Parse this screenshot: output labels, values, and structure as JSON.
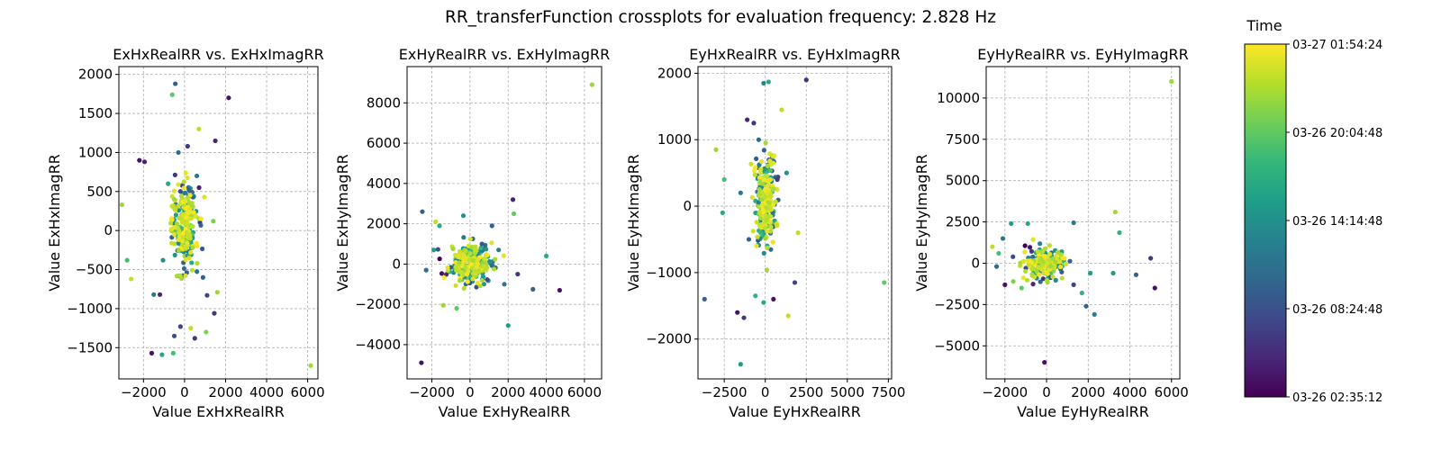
{
  "figure": {
    "title": "RR_transferFunction crossplots for evaluation frequency: 2.828 Hz"
  },
  "colorbar": {
    "title": "Time",
    "colormap": "viridis",
    "colors": [
      "#440154",
      "#482878",
      "#3e4989",
      "#31688e",
      "#26828e",
      "#1f9e89",
      "#35b779",
      "#6ece58",
      "#b5de2b",
      "#fde725"
    ],
    "tick_labels": [
      "03-27 01:54:24",
      "03-26 20:04:48",
      "03-26 14:14:48",
      "03-26 08:24:48",
      "03-26 02:35:12"
    ]
  },
  "chart_data": [
    {
      "type": "scatter",
      "title": "ExHxRealRR vs. ExHxImagRR",
      "xlabel": "Value ExHxRealRR",
      "ylabel": "Value ExHxImagRR",
      "xlim": [
        -3200,
        6500
      ],
      "ylim": [
        -1900,
        2100
      ],
      "xticks": [
        -2000,
        0,
        2000,
        4000,
        6000
      ],
      "yticks": [
        -1500,
        -1000,
        -500,
        0,
        500,
        1000,
        1500,
        2000
      ],
      "grid": true,
      "core": {
        "x_center": 0,
        "y_center": 50,
        "x_spread": 300,
        "y_spread": 260,
        "count": 240
      },
      "points": [
        [
          -450,
          1880,
          0.3
        ],
        [
          -600,
          1740,
          0.75
        ],
        [
          2150,
          1700,
          0.05
        ],
        [
          -2200,
          900,
          0.05
        ],
        [
          -1950,
          880,
          0.1
        ],
        [
          1500,
          1150,
          0.1
        ],
        [
          700,
          1300,
          0.9
        ],
        [
          -300,
          1000,
          0.35
        ],
        [
          150,
          1080,
          0.15
        ],
        [
          -3050,
          330,
          0.85
        ],
        [
          -2800,
          -380,
          0.7
        ],
        [
          -2600,
          -620,
          0.9
        ],
        [
          -1200,
          -820,
          0.1
        ],
        [
          -1500,
          -820,
          0.4
        ],
        [
          1100,
          -830,
          0.2
        ],
        [
          1600,
          -790,
          0.85
        ],
        [
          -1600,
          -1570,
          0.05
        ],
        [
          -1100,
          -1590,
          0.6
        ],
        [
          -550,
          -1570,
          0.7
        ],
        [
          -200,
          -1230,
          0.2
        ],
        [
          -500,
          -1350,
          0.25
        ],
        [
          300,
          -1250,
          0.9
        ],
        [
          500,
          -1380,
          0.15
        ],
        [
          1050,
          -1300,
          0.8
        ],
        [
          1450,
          -1060,
          0.15
        ],
        [
          6150,
          -1730,
          0.85
        ],
        [
          1400,
          120,
          0.8
        ],
        [
          -1050,
          -380,
          0.5
        ],
        [
          900,
          -600,
          0.3
        ],
        [
          -800,
          600,
          0.6
        ],
        [
          600,
          700,
          0.4
        ]
      ]
    },
    {
      "type": "scatter",
      "title": "ExHyRealRR vs. ExHyImagRR",
      "xlabel": "Value ExHyRealRR",
      "ylabel": "Value ExHyImagRR",
      "xlim": [
        -3300,
        6900
      ],
      "ylim": [
        -5700,
        9800
      ],
      "xticks": [
        -2000,
        0,
        2000,
        4000,
        6000
      ],
      "yticks": [
        -4000,
        -2000,
        0,
        2000,
        4000,
        6000,
        8000
      ],
      "grid": true,
      "core": {
        "x_center": 0,
        "y_center": 0,
        "x_spread": 560,
        "y_spread": 520,
        "count": 240
      },
      "points": [
        [
          6400,
          8900,
          0.85
        ],
        [
          -2500,
          2600,
          0.3
        ],
        [
          2250,
          3200,
          0.1
        ],
        [
          2300,
          2500,
          0.75
        ],
        [
          -1600,
          1900,
          0.6
        ],
        [
          -1800,
          2100,
          0.9
        ],
        [
          -350,
          2400,
          0.5
        ],
        [
          1150,
          1900,
          0.3
        ],
        [
          -2550,
          -4900,
          0.05
        ],
        [
          2000,
          -3050,
          0.55
        ],
        [
          4000,
          400,
          0.6
        ],
        [
          4700,
          -1300,
          0.05
        ],
        [
          3300,
          -1250,
          0.3
        ],
        [
          -2300,
          -300,
          0.35
        ],
        [
          -1400,
          -2050,
          0.85
        ],
        [
          -700,
          -2200,
          0.75
        ],
        [
          1800,
          -1000,
          0.4
        ],
        [
          2500,
          -500,
          0.15
        ],
        [
          -1900,
          700,
          0.55
        ],
        [
          1500,
          700,
          0.45
        ]
      ]
    },
    {
      "type": "scatter",
      "title": "EyHxRealRR vs. EyHxImagRR",
      "xlabel": "Value EyHxRealRR",
      "ylabel": "Value EyHxImagRR",
      "xlim": [
        -4100,
        7700
      ],
      "ylim": [
        -2600,
        2100
      ],
      "xticks": [
        -2500,
        0,
        2500,
        5000,
        7500
      ],
      "yticks": [
        -2000,
        -1000,
        0,
        1000,
        2000
      ],
      "grid": true,
      "core": {
        "x_center": 0,
        "y_center": 60,
        "x_spread": 330,
        "y_spread": 340,
        "count": 260
      },
      "points": [
        [
          2500,
          1900,
          0.15
        ],
        [
          -100,
          1850,
          0.45
        ],
        [
          200,
          1870,
          0.6
        ],
        [
          -1100,
          1300,
          0.1
        ],
        [
          -700,
          1250,
          0.15
        ],
        [
          1000,
          1450,
          0.9
        ],
        [
          -3000,
          850,
          0.85
        ],
        [
          -2500,
          400,
          0.7
        ],
        [
          -3700,
          -1400,
          0.3
        ],
        [
          -1700,
          -1600,
          0.05
        ],
        [
          -1300,
          -1680,
          0.15
        ],
        [
          1400,
          -1650,
          0.9
        ],
        [
          -1500,
          -2380,
          0.55
        ],
        [
          -600,
          -1350,
          0.65
        ],
        [
          -100,
          -1450,
          0.6
        ],
        [
          500,
          -1400,
          0.05
        ],
        [
          1800,
          -1150,
          0.2
        ],
        [
          7250,
          -1150,
          0.75
        ],
        [
          -2600,
          -100,
          0.6
        ],
        [
          2000,
          -400,
          0.9
        ],
        [
          -1000,
          -500,
          0.3
        ],
        [
          1300,
          500,
          0.5
        ],
        [
          -1500,
          200,
          0.4
        ],
        [
          -400,
          1000,
          0.35
        ]
      ]
    },
    {
      "type": "scatter",
      "title": "EyHyRealRR vs. EyHyImagRR",
      "xlabel": "Value EyHyRealRR",
      "ylabel": "Value EyHyImagRR",
      "xlim": [
        -2900,
        6400
      ],
      "ylim": [
        -7000,
        11900
      ],
      "xticks": [
        -2000,
        0,
        2000,
        4000,
        6000
      ],
      "yticks": [
        -5000,
        -2500,
        0,
        2500,
        5000,
        7500,
        10000
      ],
      "grid": true,
      "core": {
        "x_center": -50,
        "y_center": 0,
        "x_spread": 470,
        "y_spread": 430,
        "count": 230
      },
      "points": [
        [
          6000,
          11000,
          0.85
        ],
        [
          3300,
          3100,
          0.85
        ],
        [
          3500,
          1850,
          0.65
        ],
        [
          1300,
          2450,
          0.4
        ],
        [
          -1700,
          2400,
          0.55
        ],
        [
          -900,
          2400,
          0.6
        ],
        [
          -2600,
          1000,
          0.9
        ],
        [
          -2300,
          600,
          0.7
        ],
        [
          -2400,
          -200,
          0.35
        ],
        [
          -2000,
          -1300,
          0.05
        ],
        [
          5000,
          300,
          0.15
        ],
        [
          5200,
          -1500,
          0.05
        ],
        [
          4300,
          -700,
          0.3
        ],
        [
          3200,
          -600,
          0.55
        ],
        [
          2100,
          -600,
          0.55
        ],
        [
          1900,
          -2600,
          0.3
        ],
        [
          2300,
          -3100,
          0.45
        ],
        [
          -100,
          -6000,
          0.05
        ],
        [
          1300,
          -1300,
          0.2
        ],
        [
          -1600,
          -1100,
          0.8
        ],
        [
          -1200,
          -1500,
          0.75
        ],
        [
          1700,
          -1800,
          0.65
        ],
        [
          -2100,
          1500,
          0.4
        ]
      ]
    }
  ]
}
